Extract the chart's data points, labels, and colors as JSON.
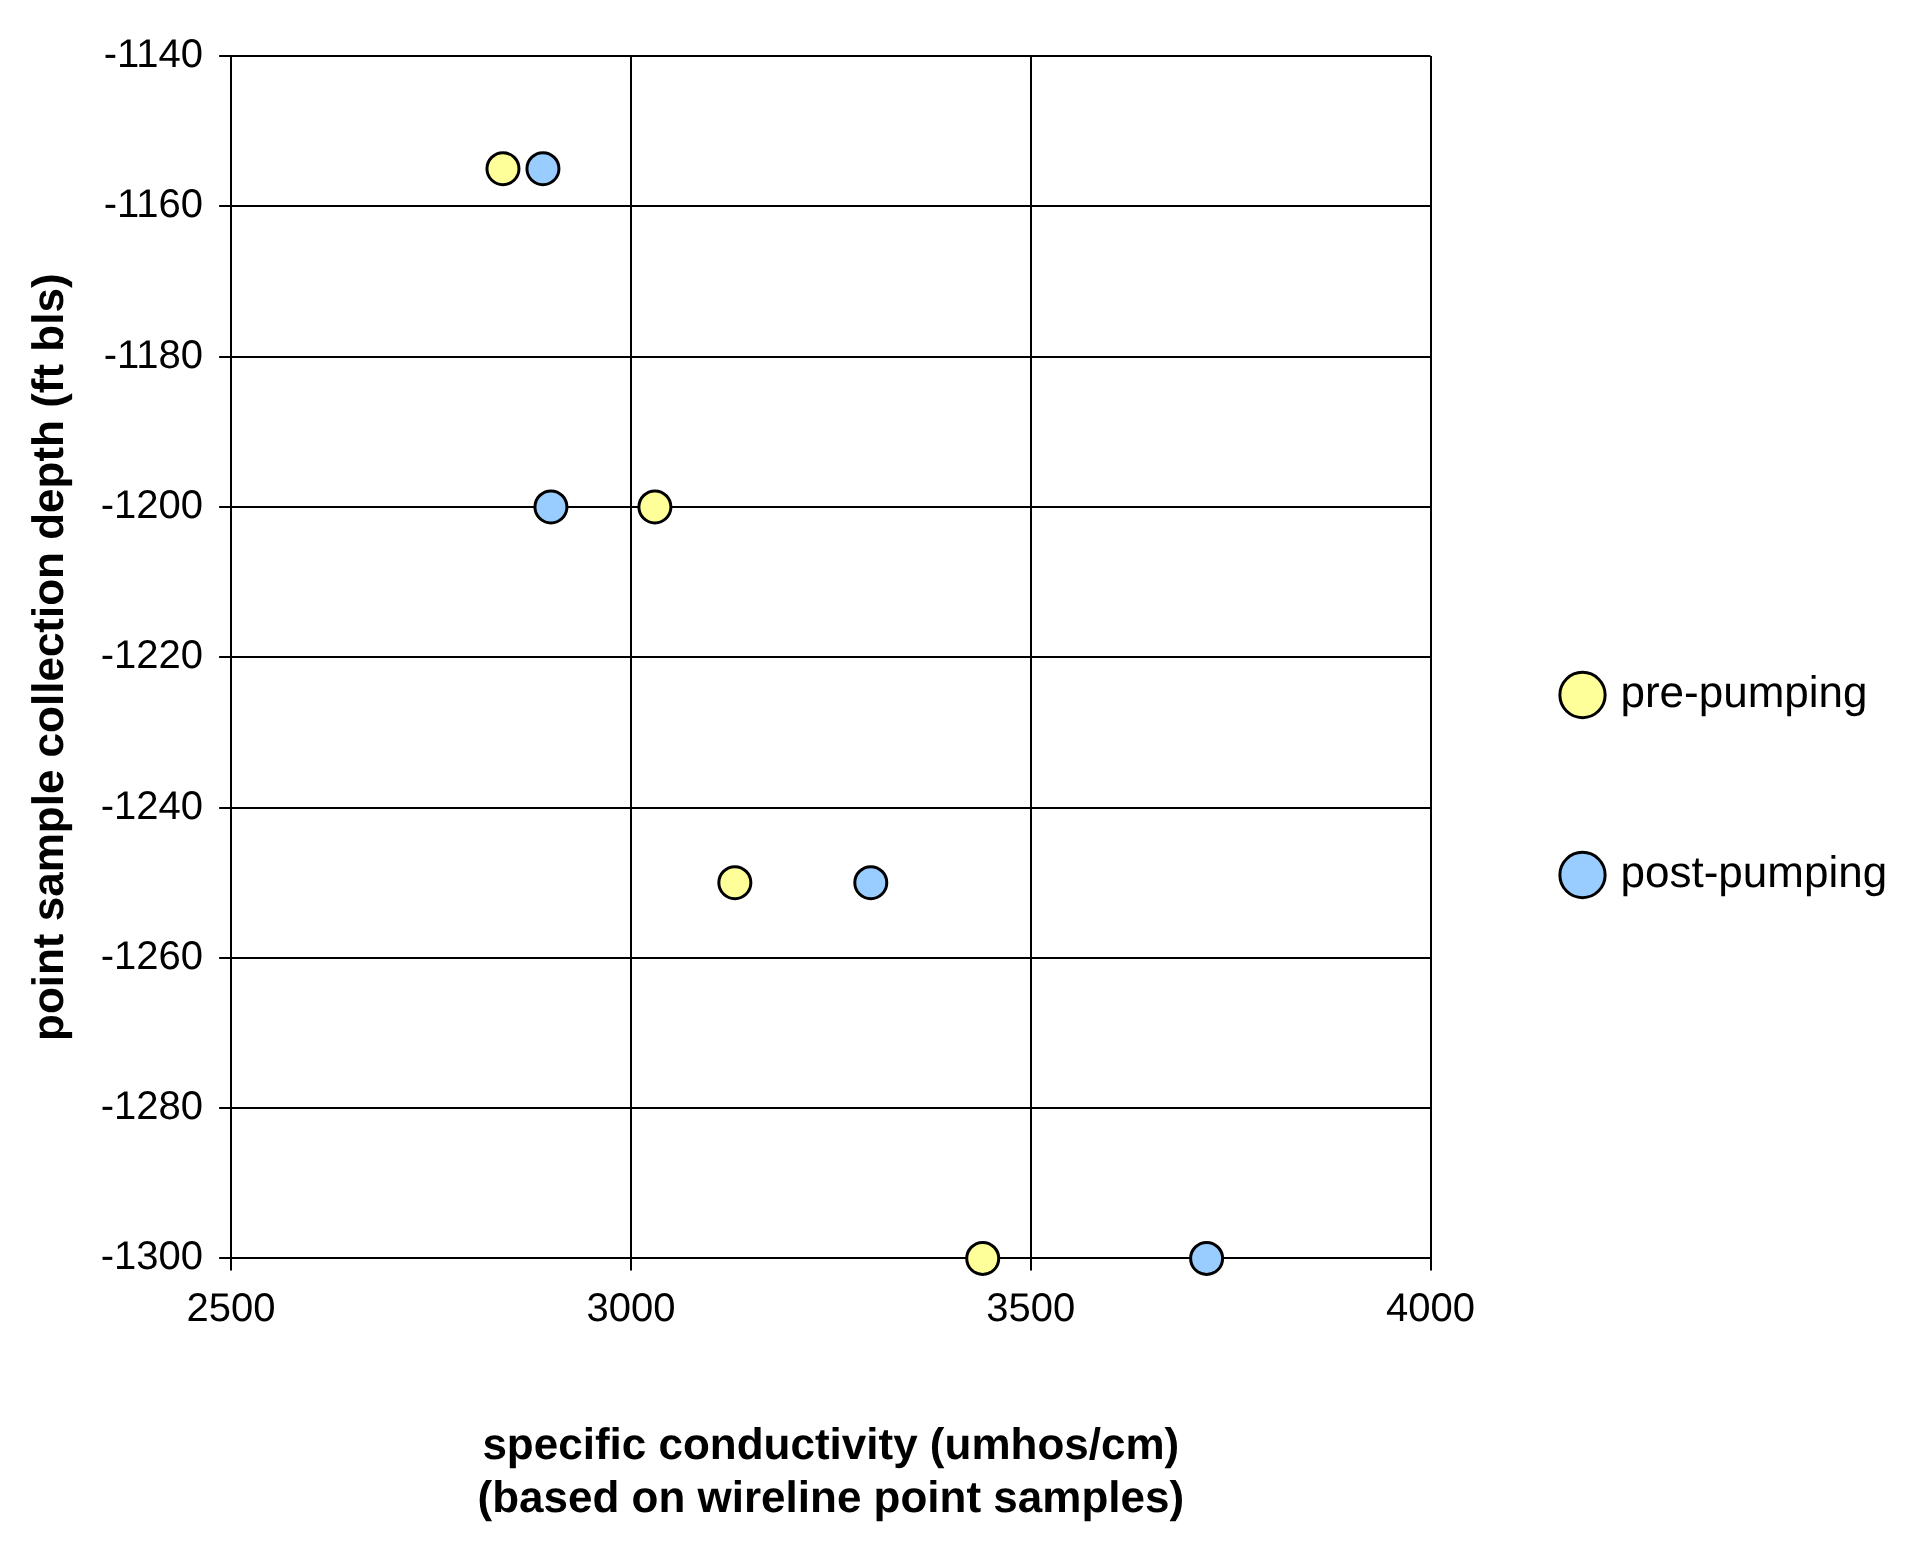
{
  "chart_data": {
    "type": "scatter",
    "xlabel": "specific conductivity (umhos/cm)\n(based on wireline point samples)",
    "ylabel": "point sample collection depth (ft bls)",
    "xlim": [
      2500,
      4000
    ],
    "xticks": [
      2500,
      3000,
      3500,
      4000
    ],
    "ylim": [
      -1300,
      -1140
    ],
    "yticks": [
      -1300,
      -1280,
      -1260,
      -1240,
      -1220,
      -1200,
      -1180,
      -1160,
      -1140
    ],
    "grid": true,
    "legend": "right",
    "marker": "circle",
    "series": [
      {
        "name": "pre-pumping",
        "color": "#ffff99",
        "x": [
          2840,
          3030,
          3130,
          3440
        ],
        "values": [
          -1155,
          -1200,
          -1250,
          -1300
        ]
      },
      {
        "name": "post-pumping",
        "color": "#99ccff",
        "x": [
          2890,
          2900,
          3300,
          3720
        ],
        "values": [
          -1155,
          -1200,
          -1250,
          -1300
        ]
      }
    ]
  }
}
